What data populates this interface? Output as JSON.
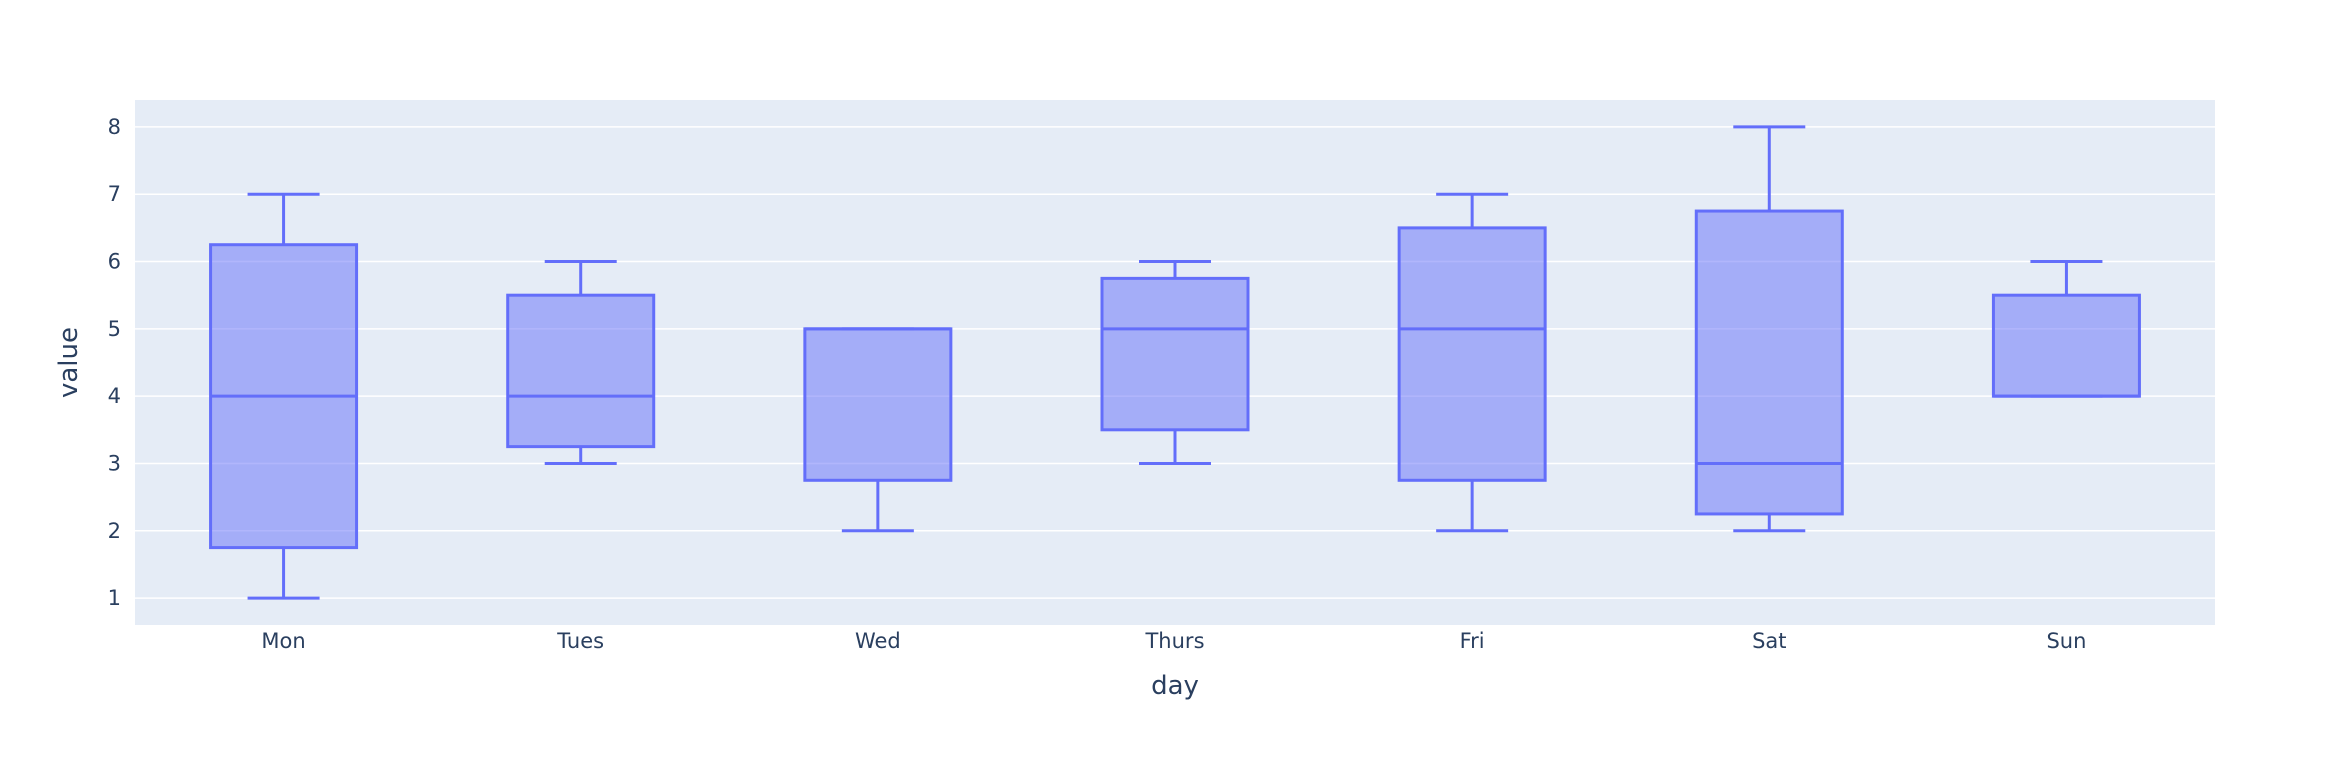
{
  "chart_data": {
    "type": "box",
    "title": "",
    "xlabel": "day",
    "ylabel": "value",
    "ylim": [
      0.6,
      8.4
    ],
    "yticks": [
      1,
      2,
      3,
      4,
      5,
      6,
      7,
      8
    ],
    "grid": true,
    "legend": "none",
    "categories": [
      "Mon",
      "Tues",
      "Wed",
      "Thurs",
      "Fri",
      "Sat",
      "Sun"
    ],
    "boxes": [
      {
        "category": "Mon",
        "min": 1,
        "q1": 1.75,
        "median": 4,
        "q3": 6.25,
        "max": 7
      },
      {
        "category": "Tues",
        "min": 3,
        "q1": 3.25,
        "median": 4,
        "q3": 5.5,
        "max": 6
      },
      {
        "category": "Wed",
        "min": 2,
        "q1": 2.75,
        "median": 5,
        "q3": 5,
        "max": 5
      },
      {
        "category": "Thurs",
        "min": 3,
        "q1": 3.5,
        "median": 5,
        "q3": 5.75,
        "max": 6
      },
      {
        "category": "Fri",
        "min": 2,
        "q1": 2.75,
        "median": 5,
        "q3": 6.5,
        "max": 7
      },
      {
        "category": "Sat",
        "min": 2,
        "q1": 2.25,
        "median": 3,
        "q3": 6.75,
        "max": 8
      },
      {
        "category": "Sun",
        "min": 4,
        "q1": 4,
        "median": 4,
        "q3": 5.5,
        "max": 6
      }
    ],
    "colors": {
      "plot_bg": "#e5ecf6",
      "grid": "#ffffff",
      "box_line": "#636efa",
      "box_fill": "rgba(99,110,250,0.5)"
    }
  }
}
